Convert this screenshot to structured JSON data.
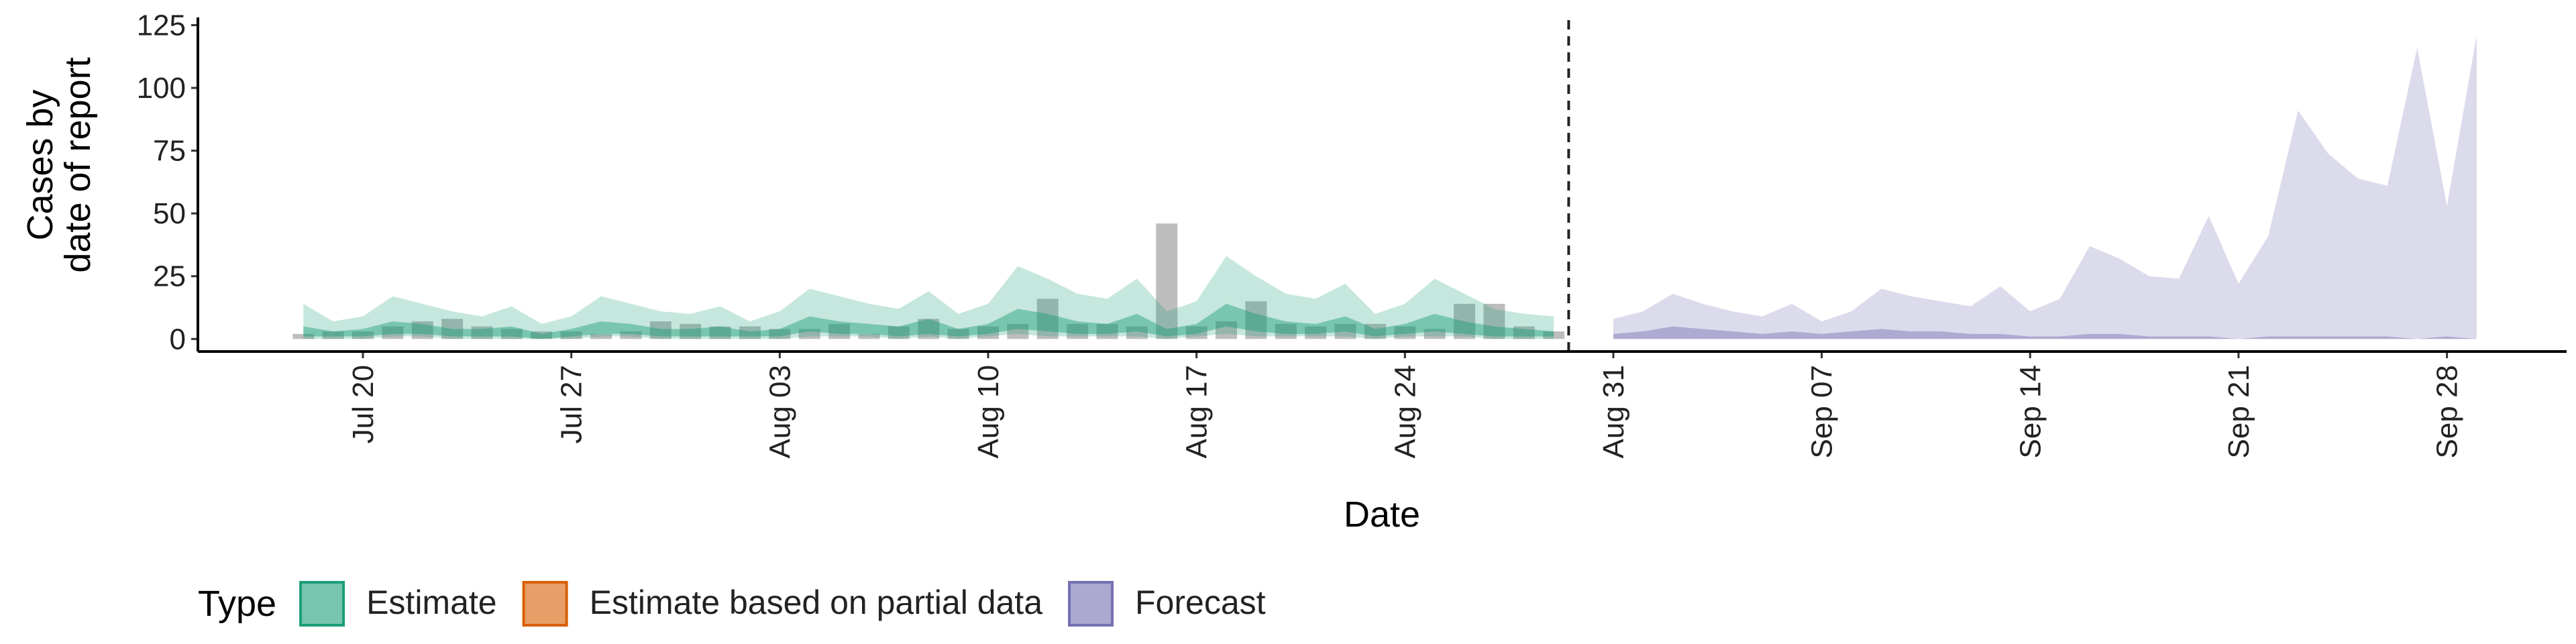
{
  "chart_data": {
    "type": "ribbon",
    "xlabel": "Date",
    "ylabel": [
      "Cases by",
      "date of report"
    ],
    "legend_title": "Type",
    "legend_position": "bottom",
    "x": [
      "Jul 18",
      "Jul 19",
      "Jul 20",
      "Jul 21",
      "Jul 22",
      "Jul 23",
      "Jul 24",
      "Jul 25",
      "Jul 26",
      "Jul 27",
      "Jul 28",
      "Jul 29",
      "Jul 30",
      "Jul 31",
      "Aug 01",
      "Aug 02",
      "Aug 03",
      "Aug 04",
      "Aug 05",
      "Aug 06",
      "Aug 07",
      "Aug 08",
      "Aug 09",
      "Aug 10",
      "Aug 11",
      "Aug 12",
      "Aug 13",
      "Aug 14",
      "Aug 15",
      "Aug 16",
      "Aug 17",
      "Aug 18",
      "Aug 19",
      "Aug 20",
      "Aug 21",
      "Aug 22",
      "Aug 23",
      "Aug 24",
      "Aug 25",
      "Aug 26",
      "Aug 27",
      "Aug 28",
      "Aug 29",
      "Aug 30",
      "Aug 31",
      "Sep 01",
      "Sep 02",
      "Sep 03",
      "Sep 04",
      "Sep 05",
      "Sep 06",
      "Sep 07",
      "Sep 08",
      "Sep 09",
      "Sep 10",
      "Sep 11",
      "Sep 12",
      "Sep 13",
      "Sep 14",
      "Sep 15",
      "Sep 16",
      "Sep 17",
      "Sep 18",
      "Sep 19",
      "Sep 20",
      "Sep 21",
      "Sep 22",
      "Sep 23",
      "Sep 24",
      "Sep 25",
      "Sep 26",
      "Sep 27",
      "Sep 28",
      "Sep 29"
    ],
    "xticks": [
      "Jul 20",
      "Jul 27",
      "Aug 03",
      "Aug 10",
      "Aug 17",
      "Aug 24",
      "Aug 31",
      "Sep 07",
      "Sep 14",
      "Sep 21",
      "Sep 28"
    ],
    "ylim": [
      -5,
      127
    ],
    "yticks": [
      0,
      25,
      50,
      75,
      100,
      125
    ],
    "observed": {
      "color": "#999999",
      "values": [
        2,
        3,
        3,
        5,
        7,
        8,
        5,
        4,
        3,
        3,
        2,
        3,
        7,
        6,
        5,
        5,
        4,
        4,
        6,
        2,
        5,
        8,
        4,
        5,
        6,
        16,
        6,
        6,
        5,
        46,
        5,
        7,
        15,
        6,
        5,
        6,
        6,
        5,
        4,
        14,
        14,
        5,
        3,
        null,
        null,
        null,
        null,
        null,
        null,
        null,
        null,
        null,
        null,
        null,
        null,
        null,
        null,
        null,
        null,
        null,
        null,
        null,
        null,
        null,
        null,
        null,
        null,
        null,
        null,
        null,
        null,
        null,
        null,
        null
      ]
    },
    "series": [
      {
        "name": "Estimate",
        "color": "#1b9e77",
        "upper_90": [
          14,
          7,
          9,
          17,
          14,
          11,
          9,
          13,
          6,
          9,
          17,
          14,
          11,
          10,
          13,
          7,
          11,
          20,
          17,
          14,
          12,
          19,
          10,
          14,
          29,
          24,
          18,
          16,
          24,
          11,
          15,
          33,
          25,
          18,
          16,
          22,
          10,
          14,
          24,
          18,
          12,
          10,
          9,
          null,
          null,
          null,
          null,
          null,
          null,
          null,
          null,
          null,
          null,
          null,
          null,
          null,
          null,
          null,
          null,
          null,
          null,
          null,
          null,
          null,
          null,
          null,
          null,
          null,
          null,
          null,
          null,
          null,
          null,
          null
        ],
        "lower_90": [
          0,
          0,
          0,
          1,
          1,
          0,
          0,
          0,
          0,
          0,
          1,
          1,
          0,
          0,
          0,
          0,
          0,
          1,
          1,
          1,
          0,
          1,
          0,
          1,
          2,
          1,
          1,
          1,
          1,
          0,
          1,
          2,
          1,
          1,
          1,
          1,
          0,
          1,
          1,
          1,
          0,
          0,
          0,
          null,
          null,
          null,
          null,
          null,
          null,
          null,
          null,
          null,
          null,
          null,
          null,
          null,
          null,
          null,
          null,
          null,
          null,
          null,
          null,
          null,
          null,
          null,
          null,
          null,
          null,
          null,
          null,
          null,
          null,
          null
        ],
        "upper_50": [
          5,
          3,
          4,
          7,
          6,
          4,
          4,
          5,
          2,
          4,
          7,
          6,
          4,
          4,
          5,
          3,
          4,
          9,
          7,
          6,
          5,
          8,
          4,
          6,
          12,
          10,
          7,
          6,
          10,
          4,
          6,
          14,
          10,
          7,
          6,
          9,
          4,
          6,
          10,
          7,
          5,
          4,
          3,
          null,
          null,
          null,
          null,
          null,
          null,
          null,
          null,
          null,
          null,
          null,
          null,
          null,
          null,
          null,
          null,
          null,
          null,
          null,
          null,
          null,
          null,
          null,
          null,
          null,
          null,
          null,
          null,
          null,
          null,
          null
        ],
        "lower_50": [
          1,
          1,
          1,
          2,
          2,
          1,
          1,
          1,
          0,
          1,
          2,
          2,
          1,
          1,
          1,
          1,
          1,
          3,
          2,
          2,
          1,
          2,
          1,
          2,
          4,
          3,
          2,
          2,
          3,
          1,
          2,
          5,
          3,
          2,
          2,
          3,
          1,
          2,
          3,
          2,
          1,
          1,
          1,
          null,
          null,
          null,
          null,
          null,
          null,
          null,
          null,
          null,
          null,
          null,
          null,
          null,
          null,
          null,
          null,
          null,
          null,
          null,
          null,
          null,
          null,
          null,
          null,
          null,
          null,
          null,
          null,
          null,
          null,
          null
        ]
      },
      {
        "name": "Estimate based on partial data",
        "color": "#d95f02"
      },
      {
        "name": "Forecast",
        "color": "#7570b3",
        "upper_90": [
          null,
          null,
          null,
          null,
          null,
          null,
          null,
          null,
          null,
          null,
          null,
          null,
          null,
          null,
          null,
          null,
          null,
          null,
          null,
          null,
          null,
          null,
          null,
          null,
          null,
          null,
          null,
          null,
          null,
          null,
          null,
          null,
          null,
          null,
          null,
          null,
          null,
          null,
          null,
          null,
          null,
          null,
          null,
          null,
          8,
          11,
          18,
          14,
          11,
          9,
          14,
          7,
          11,
          20,
          17,
          15,
          13,
          21,
          11,
          16,
          37,
          32,
          25,
          24,
          49,
          22,
          41,
          91,
          74,
          64,
          61,
          116,
          53,
          121
        ],
        "lower_90": [
          null,
          null,
          null,
          null,
          null,
          null,
          null,
          null,
          null,
          null,
          null,
          null,
          null,
          null,
          null,
          null,
          null,
          null,
          null,
          null,
          null,
          null,
          null,
          null,
          null,
          null,
          null,
          null,
          null,
          null,
          null,
          null,
          null,
          null,
          null,
          null,
          null,
          null,
          null,
          null,
          null,
          null,
          null,
          null,
          0,
          0,
          0,
          0,
          0,
          0,
          0,
          0,
          0,
          0,
          0,
          0,
          0,
          0,
          0,
          0,
          0,
          0,
          0,
          0,
          0,
          0,
          0,
          0,
          0,
          0,
          0,
          0,
          0,
          0
        ],
        "upper_50": [
          null,
          null,
          null,
          null,
          null,
          null,
          null,
          null,
          null,
          null,
          null,
          null,
          null,
          null,
          null,
          null,
          null,
          null,
          null,
          null,
          null,
          null,
          null,
          null,
          null,
          null,
          null,
          null,
          null,
          null,
          null,
          null,
          null,
          null,
          null,
          null,
          null,
          null,
          null,
          null,
          null,
          null,
          null,
          null,
          2,
          3,
          5,
          4,
          3,
          2,
          3,
          2,
          3,
          4,
          3,
          3,
          2,
          2,
          1,
          1,
          2,
          2,
          1,
          1,
          1,
          0,
          1,
          1,
          1,
          1,
          1,
          0,
          1,
          0
        ],
        "lower_50": [
          null,
          null,
          null,
          null,
          null,
          null,
          null,
          null,
          null,
          null,
          null,
          null,
          null,
          null,
          null,
          null,
          null,
          null,
          null,
          null,
          null,
          null,
          null,
          null,
          null,
          null,
          null,
          null,
          null,
          null,
          null,
          null,
          null,
          null,
          null,
          null,
          null,
          null,
          null,
          null,
          null,
          null,
          null,
          null,
          0,
          0,
          0,
          0,
          0,
          0,
          0,
          0,
          0,
          0,
          0,
          0,
          0,
          0,
          0,
          0,
          0,
          0,
          0,
          0,
          0,
          0,
          0,
          0,
          0,
          0,
          0,
          0,
          0,
          0
        ]
      }
    ]
  }
}
